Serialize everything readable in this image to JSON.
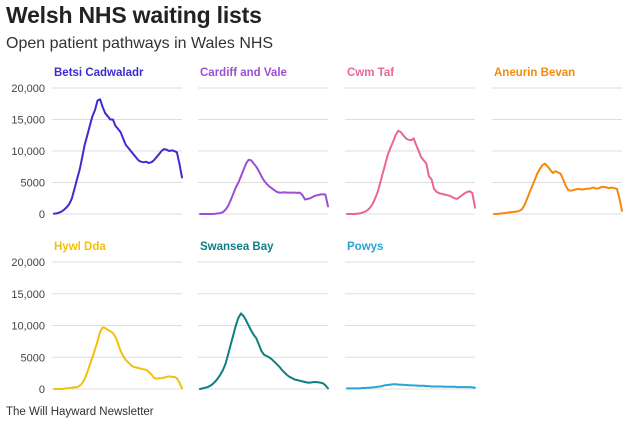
{
  "header": {
    "title": "Welsh NHS waiting lists",
    "subtitle": "Open patient pathways in Wales NHS"
  },
  "footer": {
    "credit": "The Will Hayward Newsletter"
  },
  "chart_data": {
    "type": "line",
    "layout": "small-multiples",
    "ylim": [
      0,
      20000
    ],
    "yticks": [
      0,
      5000,
      10000,
      15000,
      20000
    ],
    "ytick_labels": [
      "0",
      "5000",
      "10,000",
      "15,000",
      "20,000"
    ],
    "grid": true,
    "series": [
      {
        "name": "Betsi Cadwaladr",
        "color": "#3d2ccf",
        "values": [
          50,
          100,
          200,
          400,
          700,
          1100,
          1600,
          2500,
          4000,
          5500,
          7000,
          9000,
          11000,
          12500,
          14000,
          15500,
          16500,
          18000,
          18200,
          17000,
          16000,
          15500,
          15000,
          15000,
          14000,
          13500,
          13000,
          12000,
          11000,
          10500,
          10000,
          9500,
          9000,
          8500,
          8300,
          8200,
          8300,
          8100,
          8200,
          8500,
          9000,
          9500,
          10000,
          10300,
          10200,
          10000,
          10100,
          10000,
          9800,
          8000,
          5800
        ]
      },
      {
        "name": "Cardiff and Vale",
        "color": "#9a4fd6",
        "values": [
          0,
          0,
          0,
          0,
          0,
          0,
          50,
          100,
          150,
          300,
          700,
          1300,
          2200,
          3200,
          4200,
          5000,
          6000,
          7000,
          8000,
          8600,
          8500,
          8000,
          7500,
          6800,
          6000,
          5300,
          4800,
          4400,
          4100,
          3800,
          3500,
          3400,
          3400,
          3450,
          3400,
          3400,
          3400,
          3400,
          3350,
          3400,
          3000,
          2300,
          2400,
          2500,
          2700,
          2900,
          3000,
          3100,
          3150,
          3100,
          1200
        ]
      },
      {
        "name": "Cwm Taf",
        "color": "#e8659a",
        "values": [
          0,
          0,
          0,
          0,
          50,
          100,
          200,
          350,
          600,
          1000,
          1600,
          2500,
          3500,
          5000,
          6500,
          8000,
          9500,
          10500,
          11500,
          12500,
          13200,
          13000,
          12500,
          12000,
          11800,
          11700,
          12000,
          11000,
          10000,
          9000,
          8500,
          8000,
          6000,
          5500,
          4000,
          3500,
          3300,
          3200,
          3100,
          3000,
          2900,
          2700,
          2500,
          2400,
          2700,
          3000,
          3300,
          3500,
          3600,
          3300,
          1000
        ]
      },
      {
        "name": "Aneurin Bevan",
        "color": "#f28a0f",
        "values": [
          0,
          0,
          50,
          100,
          150,
          200,
          250,
          300,
          350,
          400,
          500,
          800,
          1500,
          2500,
          3500,
          4500,
          5500,
          6500,
          7200,
          7800,
          8000,
          7500,
          7000,
          6500,
          6800,
          6600,
          6400,
          5500,
          4500,
          3800,
          3700,
          3800,
          3900,
          4000,
          3900,
          3900,
          4000,
          4000,
          4100,
          4200,
          4000,
          4100,
          4300,
          4300,
          4200,
          4100,
          4200,
          4100,
          4000,
          2500,
          500
        ]
      },
      {
        "name": "Hywl Dda",
        "color": "#f2c10e",
        "values": [
          0,
          0,
          0,
          0,
          50,
          100,
          150,
          200,
          250,
          300,
          500,
          900,
          1600,
          2600,
          3800,
          5000,
          6200,
          7500,
          9000,
          9700,
          9600,
          9300,
          9100,
          8800,
          8200,
          7200,
          6000,
          5200,
          4600,
          4200,
          3800,
          3500,
          3400,
          3300,
          3200,
          3100,
          3000,
          2700,
          2300,
          1800,
          1600,
          1700,
          1700,
          1800,
          1900,
          2000,
          1900,
          1900,
          1700,
          1000,
          100
        ]
      },
      {
        "name": "Swansea Bay",
        "color": "#0d7f83",
        "values": [
          0,
          100,
          200,
          300,
          500,
          800,
          1200,
          1700,
          2300,
          3000,
          4000,
          5500,
          7000,
          8500,
          10000,
          11200,
          11900,
          11500,
          10800,
          10000,
          9200,
          8500,
          8000,
          7000,
          6000,
          5400,
          5200,
          5000,
          4700,
          4300,
          3900,
          3500,
          3000,
          2600,
          2200,
          1900,
          1700,
          1500,
          1400,
          1300,
          1200,
          1100,
          1000,
          1000,
          1050,
          1100,
          1050,
          1000,
          900,
          600,
          100
        ]
      },
      {
        "name": "Powys",
        "color": "#29a3d8",
        "values": [
          100,
          100,
          100,
          100,
          100,
          100,
          150,
          150,
          200,
          200,
          250,
          300,
          350,
          400,
          500,
          600,
          650,
          700,
          750,
          750,
          700,
          700,
          650,
          650,
          600,
          600,
          550,
          550,
          500,
          500,
          500,
          450,
          450,
          400,
          400,
          400,
          400,
          400,
          350,
          350,
          350,
          350,
          350,
          300,
          300,
          300,
          300,
          300,
          300,
          250,
          200
        ]
      }
    ]
  }
}
